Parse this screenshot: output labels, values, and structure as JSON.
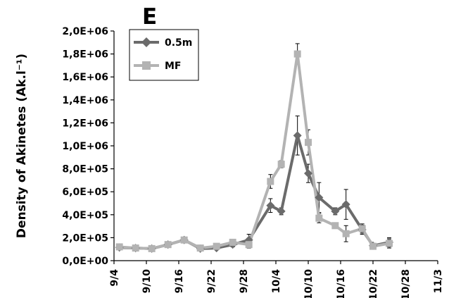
{
  "panel_label": "E",
  "chart_data": {
    "type": "line",
    "title": "",
    "xlabel": "",
    "ylabel": "Density of Akinetes (Ak.l⁻¹)",
    "ylim": [
      0,
      2000000
    ],
    "xlim": [
      "2015-09-04",
      "2015-11-03"
    ],
    "x_ticks": [
      "9/4",
      "9/10",
      "9/16",
      "9/22",
      "9/28",
      "10/4",
      "10/10",
      "10/16",
      "10/22",
      "10/28",
      "11/3"
    ],
    "y_ticks": [
      "0,0E+00",
      "2,0E+05",
      "4,0E+05",
      "6,0E+05",
      "8,0E+05",
      "1,0E+06",
      "1,2E+06",
      "1,4E+06",
      "1,6E+06",
      "1,8E+06",
      "2,0E+06"
    ],
    "grid": false,
    "legend_position": "top-left",
    "x": [
      "2015-09-05",
      "2015-09-08",
      "2015-09-11",
      "2015-09-14",
      "2015-09-17",
      "2015-09-20",
      "2015-09-23",
      "2015-09-26",
      "2015-09-29",
      "2015-10-03",
      "2015-10-05",
      "2015-10-08",
      "2015-10-10",
      "2015-10-12",
      "2015-10-15",
      "2015-10-17",
      "2015-10-20",
      "2015-10-22",
      "2015-10-25",
      "2015-10-28"
    ],
    "series": [
      {
        "name": "0.5m",
        "color": "#6b6b6b",
        "marker": "diamond",
        "values": [
          115000,
          110000,
          105000,
          140000,
          180000,
          105000,
          110000,
          140000,
          180000,
          480000,
          430000,
          1090000,
          760000,
          550000,
          430000,
          490000,
          270000,
          130000,
          160000,
          null
        ],
        "error": [
          20000,
          15000,
          15000,
          20000,
          20000,
          15000,
          15000,
          20000,
          50000,
          60000,
          30000,
          170000,
          80000,
          130000,
          30000,
          130000,
          40000,
          20000,
          40000,
          null
        ]
      },
      {
        "name": "MF",
        "color": "#b3b3b3",
        "marker": "square",
        "values": [
          120000,
          110000,
          105000,
          140000,
          180000,
          110000,
          125000,
          160000,
          140000,
          690000,
          840000,
          1800000,
          1030000,
          370000,
          305000,
          235000,
          280000,
          125000,
          150000,
          null
        ],
        "error": [
          20000,
          15000,
          15000,
          20000,
          20000,
          15000,
          15000,
          20000,
          30000,
          60000,
          30000,
          90000,
          110000,
          40000,
          20000,
          70000,
          40000,
          20000,
          40000,
          null
        ]
      }
    ]
  }
}
